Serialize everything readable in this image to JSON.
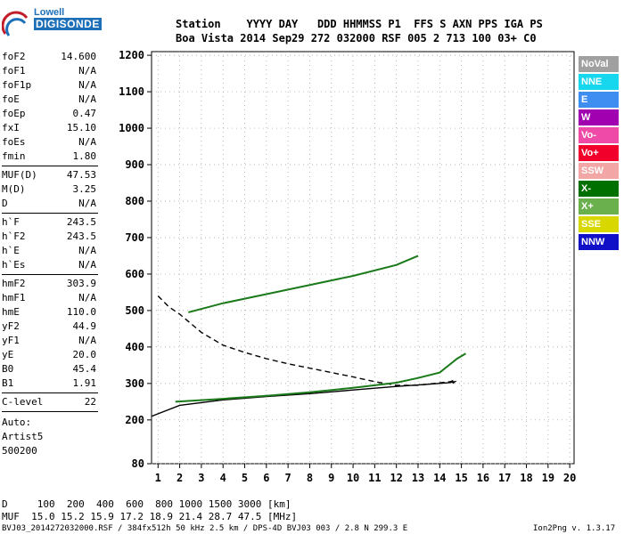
{
  "logo": {
    "brand": "Lowell",
    "name": "DIGISONDE"
  },
  "header": {
    "line1": "Station    YYYY DAY   DDD HHMMSS P1  FFS S AXN PPS IGA PS",
    "line2": "Boa Vista 2014 Sep29 272 032000 RSF 005 2 713 100 03+ C0"
  },
  "params": [
    {
      "k": "foF2",
      "v": "14.600"
    },
    {
      "k": "foF1",
      "v": "N/A"
    },
    {
      "k": "foF1p",
      "v": "N/A"
    },
    {
      "k": "foE",
      "v": "N/A"
    },
    {
      "k": "foEp",
      "v": "0.47"
    },
    {
      "k": "fxI",
      "v": "15.10"
    },
    {
      "k": "foEs",
      "v": "N/A"
    },
    {
      "k": "fmin",
      "v": "1.80"
    },
    {
      "sep": true
    },
    {
      "k": "MUF(D)",
      "v": "47.53"
    },
    {
      "k": "M(D)",
      "v": "3.25"
    },
    {
      "k": "D",
      "v": "N/A"
    },
    {
      "sep": true
    },
    {
      "k": "h`F",
      "v": "243.5"
    },
    {
      "k": "h`F2",
      "v": "243.5"
    },
    {
      "k": "h`E",
      "v": "N/A"
    },
    {
      "k": "h`Es",
      "v": "N/A"
    },
    {
      "sep": true
    },
    {
      "k": "hmF2",
      "v": "303.9"
    },
    {
      "k": "hmF1",
      "v": "N/A"
    },
    {
      "k": "hmE",
      "v": "110.0"
    },
    {
      "k": "yF2",
      "v": "44.9"
    },
    {
      "k": "yF1",
      "v": "N/A"
    },
    {
      "k": "yE",
      "v": "20.0"
    },
    {
      "k": "B0",
      "v": "45.4"
    },
    {
      "k": "B1",
      "v": "1.91"
    },
    {
      "sep": true
    },
    {
      "k": "C-level",
      "v": "22"
    },
    {
      "sep": true
    }
  ],
  "auto": {
    "l1": "Auto:",
    "l2": "Artist5",
    "l3": "500200"
  },
  "legend": [
    {
      "label": "NoVal",
      "color": "#a0a0a0"
    },
    {
      "label": "NNE",
      "color": "#17d7ee"
    },
    {
      "label": "E",
      "color": "#3d8ef0"
    },
    {
      "label": "W",
      "color": "#a000b0"
    },
    {
      "label": "Vo-",
      "color": "#f04aa8"
    },
    {
      "label": "Vo+",
      "color": "#f0002a"
    },
    {
      "label": "SSW",
      "color": "#f3a6a6"
    },
    {
      "label": "X-",
      "color": "#007000"
    },
    {
      "label": "X+",
      "color": "#6ab04c"
    },
    {
      "label": "SSE",
      "color": "#d8d800"
    },
    {
      "label": "NNW",
      "color": "#1010c8"
    }
  ],
  "footer": {
    "d_line": "D     100  200  400  600  800 1000 1500 3000 [km]",
    "muf_line": "MUF  15.0 15.2 15.9 17.2 18.9 21.4 28.7 47.5 [MHz]",
    "file_line": "BVJ03_2014272032000.RSF / 384fx512h 50 kHz 2.5 km / DPS-4D BVJ03 003 / 2.8 N 299.3 E",
    "version": "Ion2Png v. 1.3.17"
  },
  "chart_data": {
    "type": "scatter",
    "title": "",
    "xlabel": "",
    "ylabel": "",
    "xlim": [
      0.7,
      20.2
    ],
    "ylim": [
      80,
      1210
    ],
    "x_ticks": [
      1,
      2,
      3,
      4,
      5,
      6,
      7,
      8,
      9,
      10,
      11,
      12,
      13,
      14,
      15,
      16,
      17,
      18,
      19,
      20
    ],
    "y_ticks": [
      80,
      200,
      300,
      400,
      500,
      600,
      700,
      800,
      900,
      1000,
      1100,
      1200
    ],
    "grid": "dotted",
    "series": [
      {
        "name": "",
        "color": "#000000",
        "values": [
          [
            0.7,
            210
          ],
          [
            2,
            240
          ],
          [
            4,
            255
          ],
          [
            6,
            264
          ],
          [
            8,
            272
          ],
          [
            10,
            282
          ],
          [
            12,
            292
          ],
          [
            13.5,
            298
          ],
          [
            14.4,
            302
          ],
          [
            14.7,
            305
          ],
          [
            14.6,
            300
          ]
        ]
      },
      {
        "name": "",
        "color": "#000000",
        "values": [
          [
            1,
            540
          ],
          [
            1.5,
            510
          ],
          [
            2,
            490
          ],
          [
            3,
            440
          ],
          [
            4,
            405
          ],
          [
            5,
            385
          ],
          [
            6,
            368
          ],
          [
            7,
            354
          ],
          [
            8,
            342
          ],
          [
            9,
            330
          ],
          [
            10,
            318
          ],
          [
            11,
            305
          ],
          [
            12,
            295
          ],
          [
            13,
            295
          ],
          [
            14.5,
            305
          ],
          [
            14.7,
            310
          ]
        ]
      },
      {
        "name": "",
        "color": "#1a7a1a",
        "values": [
          [
            1.8,
            250
          ],
          [
            4,
            258
          ],
          [
            6,
            266
          ],
          [
            8,
            276
          ],
          [
            10,
            288
          ],
          [
            12,
            302
          ],
          [
            13,
            315
          ],
          [
            14,
            330
          ],
          [
            14.8,
            368
          ],
          [
            15.2,
            382
          ]
        ]
      },
      {
        "name": "",
        "color": "#1a7a1a",
        "values": [
          [
            2.4,
            495
          ],
          [
            4,
            520
          ],
          [
            6,
            545
          ],
          [
            8,
            570
          ],
          [
            10,
            595
          ],
          [
            12,
            625
          ],
          [
            13,
            650
          ]
        ]
      }
    ]
  }
}
